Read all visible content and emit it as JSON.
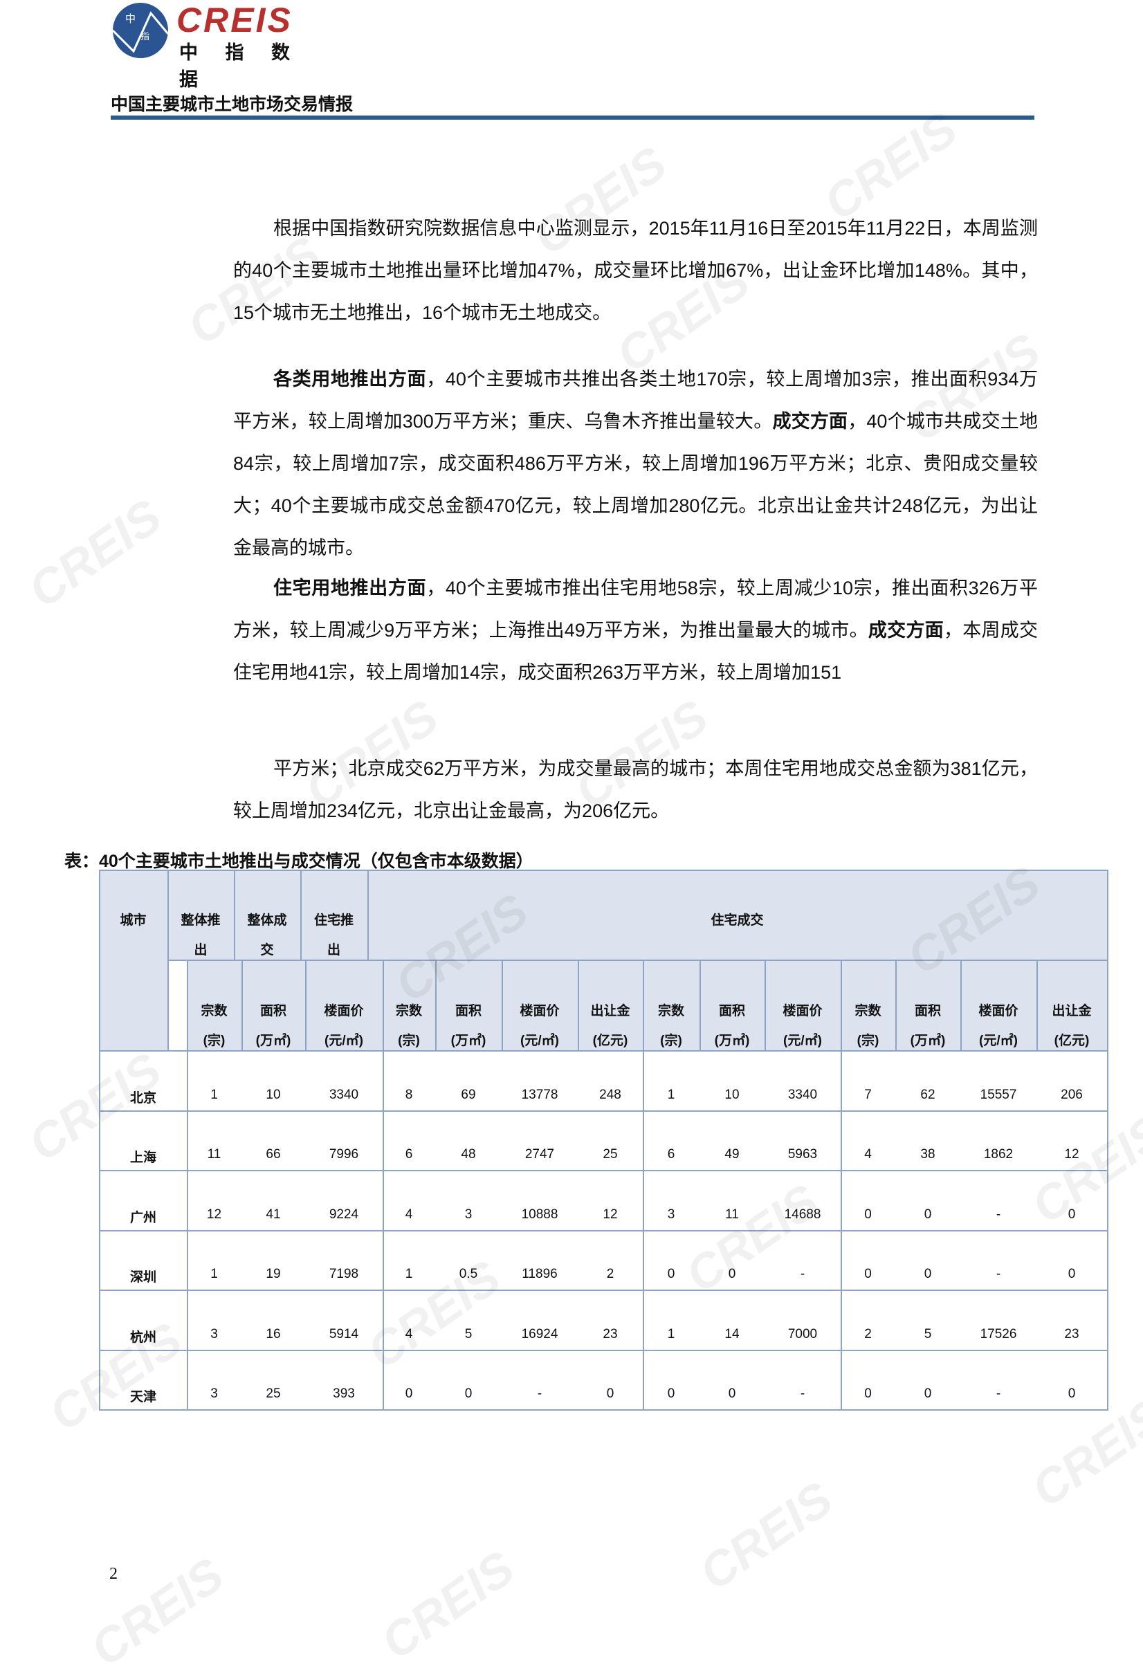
{
  "header": {
    "logo": {
      "brand": "CREIS",
      "brand_cn": "中 指 数 据",
      "mark_chars": [
        "中",
        "指"
      ],
      "brand_color": "#b7302e",
      "mark_color": "#2b5592"
    },
    "report_title": "中国主要城市土地市场交易情报",
    "rule_color": "#2b5a8f"
  },
  "body": {
    "paragraphs": [
      [
        {
          "text": "根据中国指数研究院数据信息中心监测显示，2015年11月16日至2015年11月22日，本周监测的40个主要城市土地推出量环比增加47%，成交量环比增加67%，出让金环比增加148%。其中，15个城市无土地推出，16个城市无土地成交。",
          "bold": false
        }
      ],
      [
        {
          "text": "各类用地推出方面",
          "bold": true
        },
        {
          "text": "，40个主要城市共推出各类土地170宗，较上周增加3宗，推出面积934万平方米，较上周增加300万平方米；重庆、乌鲁木齐推出量较大。",
          "bold": false
        },
        {
          "text": "成交方面",
          "bold": true
        },
        {
          "text": "，40个城市共成交土地84宗，较上周增加7宗，成交面积486万平方米，较上周增加196万平方米；北京、贵阳成交量较大；40个主要城市成交总金额470亿元，较上周增加280亿元。北京出让金共计248亿元，为出让金最高的城市。",
          "bold": false
        }
      ],
      [
        {
          "text": "住宅用地推出方面",
          "bold": true
        },
        {
          "text": "，40个主要城市推出住宅用地58宗，较上周减少10宗，推出面积326万平方米，较上周减少9万平方米；上海推出49万平方米，为推出量最大的城市。",
          "bold": false
        },
        {
          "text": "成交方面",
          "bold": true
        },
        {
          "text": "，本周成交住宅用地41宗，较上周增加14宗，成交面积263万平方米，较上周增加151",
          "bold": false
        }
      ],
      [
        {
          "text": "平方米；北京成交62万平方米，为成交量最高的城市；本周住宅用地成交总金额为381亿元，较上周增加234亿元，北京出让金最高，为206亿元。",
          "bold": false
        }
      ]
    ]
  },
  "table": {
    "caption": "表：40个主要城市土地推出与成交情况（仅包含市本级数据）",
    "group_headers": [
      {
        "label": [
          "城市"
        ]
      },
      {
        "label": [
          "整体推",
          "出"
        ]
      },
      {
        "label": [
          "整体成",
          "交"
        ]
      },
      {
        "label": [
          "住宅推",
          "出"
        ]
      },
      {
        "label": [
          "住宅成交"
        ]
      }
    ],
    "sub_headers": [
      [
        "宗数",
        "(宗)"
      ],
      [
        "面积",
        "(万㎡)"
      ],
      [
        "楼面价",
        "(元/㎡)"
      ],
      [
        "宗数",
        "(宗)"
      ],
      [
        "面积",
        "(万㎡)"
      ],
      [
        "楼面价",
        "(元/㎡)"
      ],
      [
        "出让金",
        "(亿元)"
      ],
      [
        "宗数",
        "(宗)"
      ],
      [
        "面积",
        "(万㎡)"
      ],
      [
        "楼面价",
        "(元/㎡)"
      ],
      [
        "宗数",
        "(宗)"
      ],
      [
        "面积",
        "(万㎡)"
      ],
      [
        "楼面价",
        "(元/㎡)"
      ],
      [
        "出让金",
        "(亿元)"
      ]
    ],
    "rows": [
      {
        "city": "北京",
        "values": [
          "1",
          "10",
          "3340",
          "8",
          "69",
          "13778",
          "248",
          "1",
          "10",
          "3340",
          "7",
          "62",
          "15557",
          "206"
        ]
      },
      {
        "city": "上海",
        "values": [
          "11",
          "66",
          "7996",
          "6",
          "48",
          "2747",
          "25",
          "6",
          "49",
          "5963",
          "4",
          "38",
          "1862",
          "12"
        ]
      },
      {
        "city": "广州",
        "values": [
          "12",
          "41",
          "9224",
          "4",
          "3",
          "10888",
          "12",
          "3",
          "11",
          "14688",
          "0",
          "0",
          "-",
          "0"
        ]
      },
      {
        "city": "深圳",
        "values": [
          "1",
          "19",
          "7198",
          "1",
          "0.5",
          "11896",
          "2",
          "0",
          "0",
          "-",
          "0",
          "0",
          "-",
          "0"
        ]
      },
      {
        "city": "杭州",
        "values": [
          "3",
          "16",
          "5914",
          "4",
          "5",
          "16924",
          "23",
          "1",
          "14",
          "7000",
          "2",
          "5",
          "17526",
          "23"
        ]
      },
      {
        "city": "天津",
        "values": [
          "3",
          "25",
          "393",
          "0",
          "0",
          "-",
          "0",
          "0",
          "0",
          "-",
          "0",
          "0",
          "-",
          "0"
        ]
      }
    ],
    "header_bg": "#dde3ee",
    "border_color": "#8fa3c6"
  },
  "footer": {
    "page_number": "2"
  },
  "watermark": {
    "text": "CREIS"
  }
}
